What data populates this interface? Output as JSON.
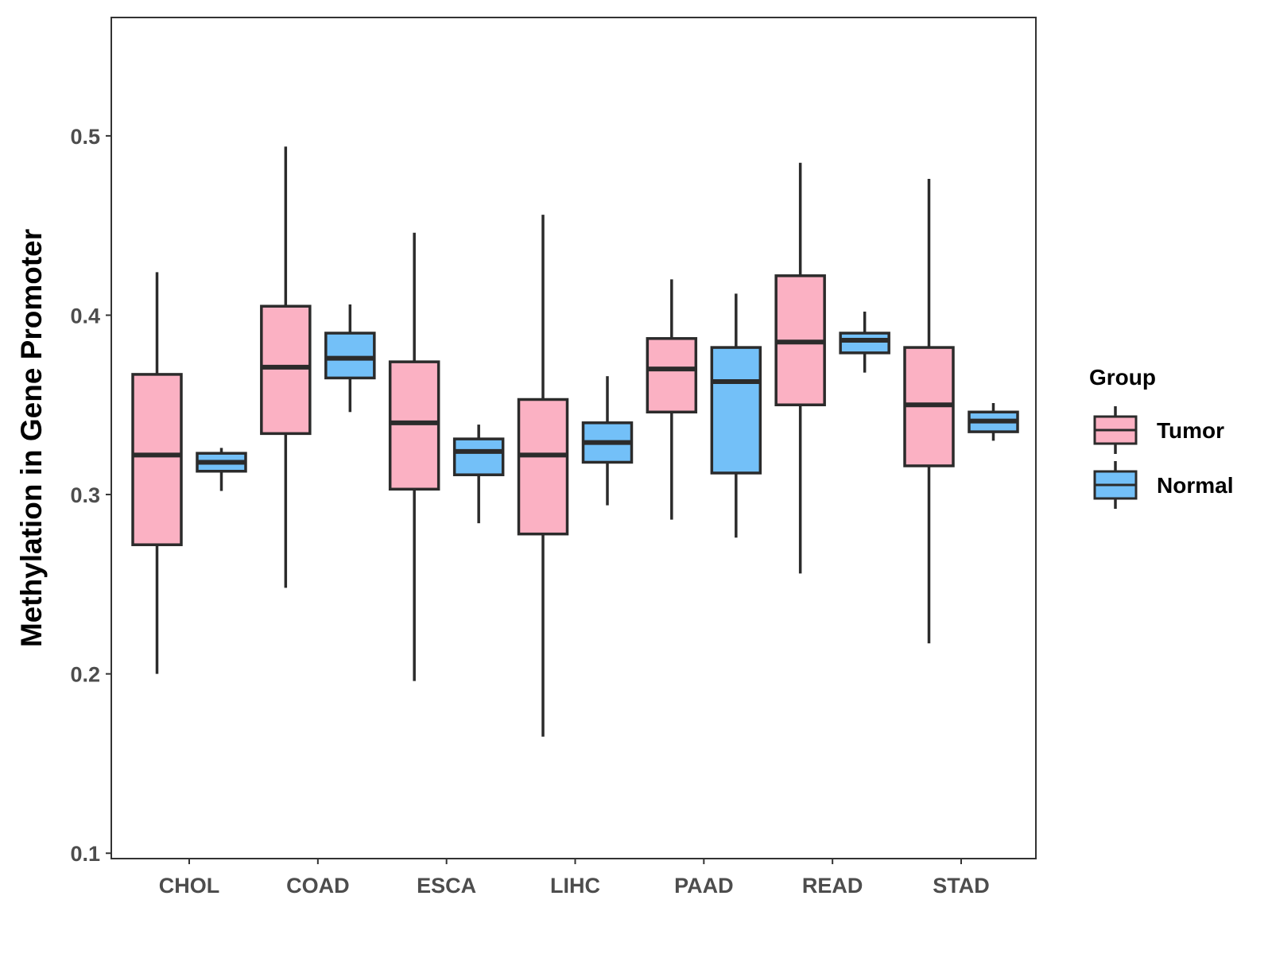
{
  "chart_data": {
    "type": "boxplot",
    "title": "",
    "xlabel": "",
    "ylabel": "Methylation in Gene Promoter",
    "ylim": [
      0.097,
      0.566
    ],
    "yticks": [
      0.1,
      0.2,
      0.3,
      0.4,
      0.5
    ],
    "ytick_labels": [
      "0.1",
      "0.2",
      "0.3",
      "0.4",
      "0.5"
    ],
    "categories": [
      "CHOL",
      "COAD",
      "ESCA",
      "LIHC",
      "PAAD",
      "READ",
      "STAD"
    ],
    "grid": false,
    "legend": {
      "title": "Group",
      "position": "right",
      "entries": [
        {
          "name": "Tumor",
          "color": "#FBB1C3"
        },
        {
          "name": "Normal",
          "color": "#73C0F8"
        }
      ]
    },
    "series": [
      {
        "name": "Tumor",
        "color": "#FBB1C3",
        "boxes": [
          {
            "min": 0.2,
            "q1": 0.272,
            "median": 0.322,
            "q3": 0.367,
            "max": 0.424
          },
          {
            "min": 0.248,
            "q1": 0.334,
            "median": 0.371,
            "q3": 0.405,
            "max": 0.494
          },
          {
            "min": 0.196,
            "q1": 0.303,
            "median": 0.34,
            "q3": 0.374,
            "max": 0.446
          },
          {
            "min": 0.165,
            "q1": 0.278,
            "median": 0.322,
            "q3": 0.353,
            "max": 0.456
          },
          {
            "min": 0.286,
            "q1": 0.346,
            "median": 0.37,
            "q3": 0.387,
            "max": 0.42
          },
          {
            "min": 0.256,
            "q1": 0.35,
            "median": 0.385,
            "q3": 0.422,
            "max": 0.485
          },
          {
            "min": 0.217,
            "q1": 0.316,
            "median": 0.35,
            "q3": 0.382,
            "max": 0.476
          }
        ]
      },
      {
        "name": "Normal",
        "color": "#73C0F8",
        "boxes": [
          {
            "min": 0.302,
            "q1": 0.313,
            "median": 0.318,
            "q3": 0.323,
            "max": 0.326
          },
          {
            "min": 0.346,
            "q1": 0.365,
            "median": 0.376,
            "q3": 0.39,
            "max": 0.406
          },
          {
            "min": 0.284,
            "q1": 0.311,
            "median": 0.324,
            "q3": 0.331,
            "max": 0.339
          },
          {
            "min": 0.294,
            "q1": 0.318,
            "median": 0.329,
            "q3": 0.34,
            "max": 0.366
          },
          {
            "min": 0.276,
            "q1": 0.312,
            "median": 0.363,
            "q3": 0.382,
            "max": 0.412
          },
          {
            "min": 0.368,
            "q1": 0.379,
            "median": 0.386,
            "q3": 0.39,
            "max": 0.402
          },
          {
            "min": 0.33,
            "q1": 0.335,
            "median": 0.341,
            "q3": 0.346,
            "max": 0.351
          }
        ]
      }
    ]
  }
}
